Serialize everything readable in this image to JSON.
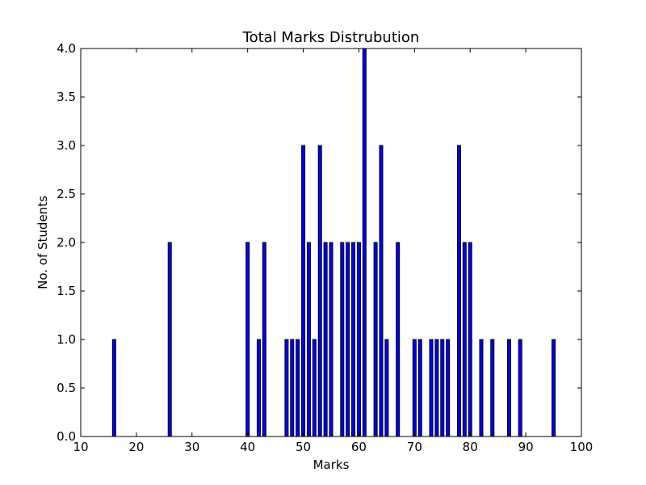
{
  "chart_data": {
    "type": "bar",
    "title": "Total Marks Distrubution",
    "xlabel": "Marks",
    "ylabel": "No. of Students",
    "xlim": [
      10,
      100
    ],
    "ylim": [
      0,
      4.0
    ],
    "x_ticks": [
      "10",
      "20",
      "30",
      "40",
      "50",
      "60",
      "70",
      "80",
      "90",
      "100"
    ],
    "y_ticks": [
      "0.0",
      "0.5",
      "1.0",
      "1.5",
      "2.0",
      "2.5",
      "3.0",
      "3.5",
      "4.0"
    ],
    "grid": false,
    "bar_color": "#0000ff",
    "x": [
      16,
      26,
      40,
      42,
      43,
      47,
      48,
      49,
      50,
      51,
      52,
      53,
      54,
      55,
      57,
      58,
      59,
      60,
      61,
      63,
      64,
      65,
      67,
      70,
      71,
      73,
      74,
      75,
      76,
      78,
      79,
      80,
      82,
      84,
      87,
      89,
      95
    ],
    "values": [
      1,
      2,
      2,
      1,
      2,
      1,
      1,
      1,
      3,
      2,
      1,
      3,
      2,
      2,
      2,
      2,
      2,
      2,
      4,
      2,
      3,
      1,
      2,
      1,
      1,
      1,
      1,
      1,
      1,
      3,
      2,
      2,
      1,
      1,
      1,
      1,
      1
    ]
  }
}
